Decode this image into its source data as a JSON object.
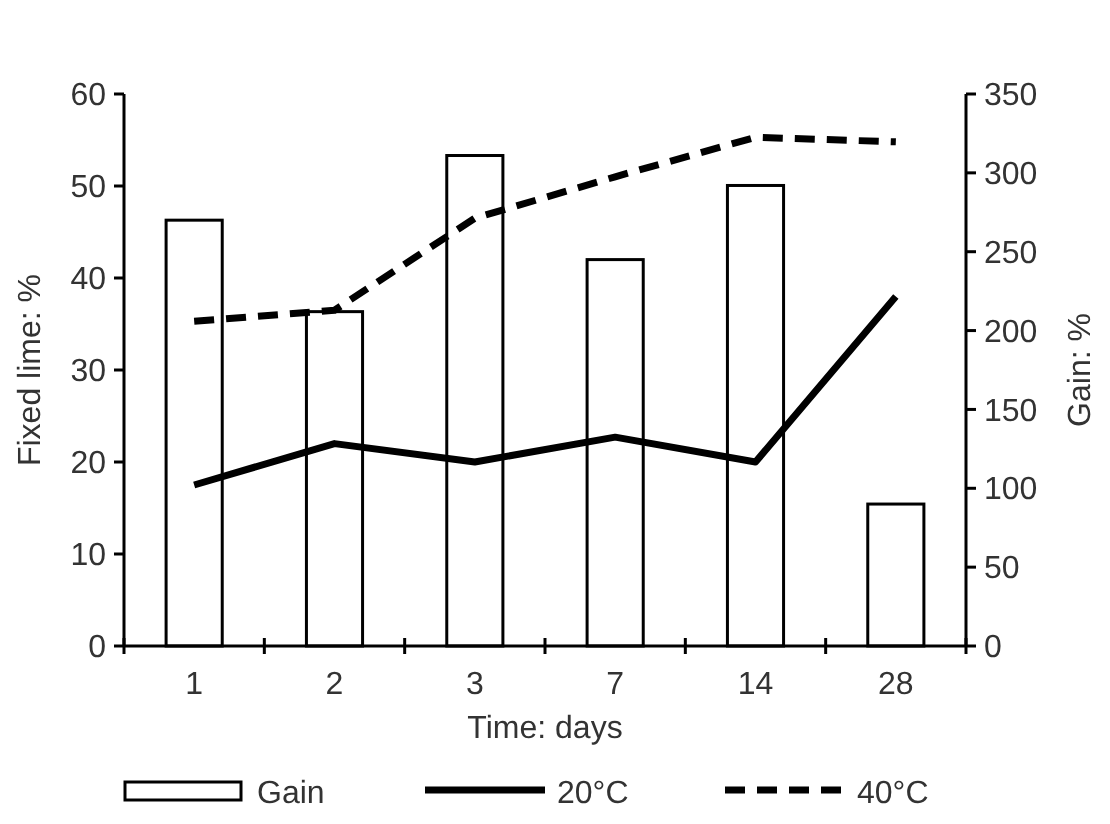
{
  "chart_data": {
    "type": "bar",
    "xlabel": "Time: days",
    "ylabel": "Fixed lime: %",
    "y2label": "Gain: %",
    "categories": [
      "1",
      "2",
      "3",
      "7",
      "14",
      "28"
    ],
    "series": [
      {
        "name": "Gain",
        "axis": "y2",
        "color": "#ffffff",
        "values": [
          270,
          212,
          311,
          245,
          292,
          90
        ]
      },
      {
        "name": "20°C",
        "type": "line",
        "axis": "y",
        "color": "#000000",
        "line_style": "solid",
        "values": [
          17.5,
          22,
          20,
          22.7,
          20,
          38
        ]
      },
      {
        "name": "40°C",
        "type": "line",
        "axis": "y",
        "color": "#000000",
        "line_style": "dashed",
        "values": [
          35.3,
          36.5,
          46.5,
          51,
          55.3,
          54.8
        ]
      }
    ],
    "ylim": [
      0,
      60
    ],
    "yticks": [
      0,
      10,
      20,
      30,
      40,
      50,
      60
    ],
    "y2lim": [
      0,
      350
    ],
    "y2ticks": [
      0,
      50,
      100,
      150,
      200,
      250,
      300,
      350
    ],
    "grid": false,
    "legend": "bottom"
  }
}
